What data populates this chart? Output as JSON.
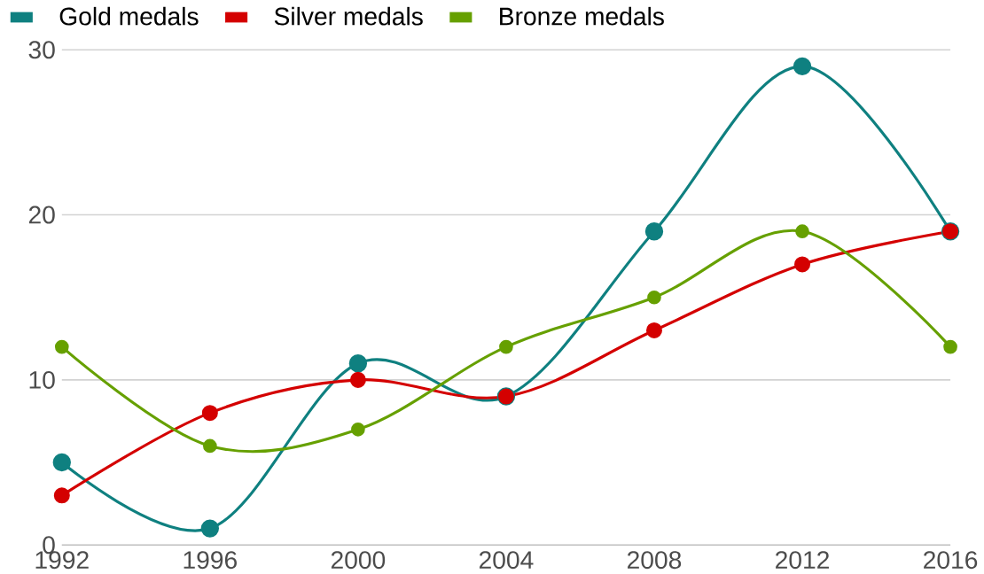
{
  "chart_data": {
    "type": "line",
    "x": [
      1992,
      1996,
      2000,
      2004,
      2008,
      2012,
      2016
    ],
    "series": [
      {
        "name": "Gold medals",
        "color": "#0f8080",
        "values": [
          5,
          1,
          11,
          9,
          19,
          29,
          19
        ]
      },
      {
        "name": "Silver medals",
        "color": "#d40000",
        "values": [
          3,
          8,
          10,
          9,
          13,
          17,
          19
        ]
      },
      {
        "name": "Bronze medals",
        "color": "#66a000",
        "values": [
          12,
          6,
          7,
          12,
          15,
          19,
          12
        ]
      }
    ],
    "xlim": [
      1992,
      2016
    ],
    "xticks": [
      1992,
      1996,
      2000,
      2004,
      2008,
      2012,
      2016
    ],
    "ylim": [
      0,
      30
    ],
    "yticks": [
      0,
      10,
      20,
      30
    ],
    "grid": "y",
    "legend": "top left",
    "marker": "circle",
    "line_style": "solid"
  }
}
